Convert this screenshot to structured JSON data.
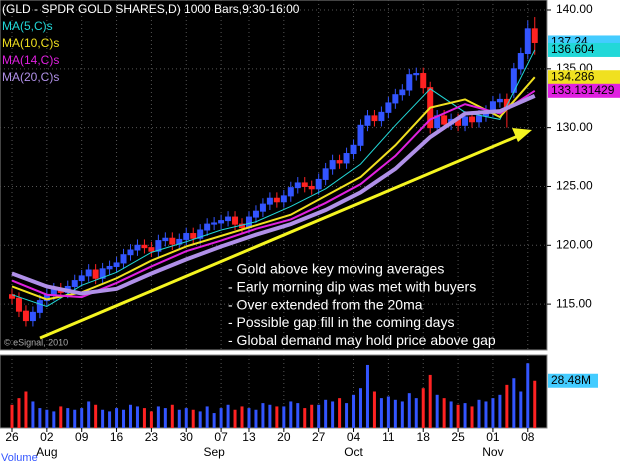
{
  "chart_data": [
    {
      "type": "candlestick",
      "title": "(GLD - SPDR GOLD SHARES,D) 1000 Bars,9:30-16:00",
      "categories": [
        "26",
        null,
        null,
        null,
        null,
        "02",
        null,
        null,
        null,
        null,
        "09",
        null,
        null,
        null,
        null,
        "16",
        null,
        null,
        null,
        null,
        "23",
        null,
        null,
        null,
        null,
        "30",
        null,
        null,
        null,
        null,
        "07",
        null,
        null,
        null,
        "13",
        null,
        null,
        null,
        null,
        "20",
        null,
        null,
        null,
        null,
        "27",
        null,
        null,
        null,
        null,
        "04",
        null,
        null,
        null,
        null,
        "11",
        null,
        null,
        null,
        null,
        "18",
        null,
        null,
        null,
        null,
        "25",
        null,
        null,
        null,
        null,
        "01",
        null,
        null,
        null,
        null,
        "08",
        null
      ],
      "month_categories": [
        null,
        null,
        null,
        null,
        null,
        "Aug",
        null,
        null,
        null,
        null,
        null,
        null,
        null,
        null,
        null,
        null,
        null,
        null,
        null,
        null,
        null,
        null,
        null,
        null,
        null,
        null,
        null,
        null,
        null,
        "Sep",
        null,
        null,
        null,
        null,
        null,
        null,
        null,
        null,
        null,
        null,
        null,
        null,
        null,
        null,
        null,
        null,
        null,
        null,
        null,
        "Oct",
        null,
        null,
        null,
        null,
        null,
        null,
        null,
        null,
        null,
        null,
        null,
        null,
        null,
        null,
        null,
        null,
        null,
        null,
        null,
        "Nov",
        null,
        null,
        null,
        null,
        null,
        null
      ],
      "open": [
        115.8,
        115.5,
        114.4,
        113.6,
        114.3,
        115.3,
        115.8,
        116.3,
        116.0,
        116.5,
        117.0,
        117.4,
        117.9,
        117.2,
        118.0,
        118.2,
        118.5,
        119.2,
        119.6,
        120.0,
        119.8,
        119.5,
        120.4,
        120.6,
        120.1,
        120.5,
        121.0,
        120.6,
        121.3,
        121.8,
        121.9,
        122.1,
        122.4,
        121.8,
        121.5,
        122.4,
        122.9,
        123.5,
        124.0,
        123.7,
        124.2,
        124.9,
        125.3,
        125.0,
        124.8,
        125.6,
        126.5,
        127.2,
        127.0,
        127.8,
        128.5,
        130.2,
        131.0,
        130.6,
        131.3,
        132.1,
        132.8,
        133.2,
        134.5,
        134.6,
        133.4,
        130.0,
        131.0,
        130.3,
        130.7,
        130.2,
        130.9,
        130.5,
        131.0,
        131.4,
        132.2,
        132.4,
        133.0,
        135.0,
        136.3,
        138.4
      ],
      "high": [
        116.3,
        116.0,
        114.9,
        114.8,
        115.8,
        116.3,
        116.8,
        116.8,
        117.0,
        117.5,
        117.9,
        118.4,
        118.4,
        118.5,
        118.7,
        119.0,
        119.7,
        120.1,
        120.5,
        120.5,
        120.3,
        120.9,
        121.1,
        121.1,
        121.0,
        121.5,
        121.5,
        121.8,
        122.3,
        122.4,
        122.6,
        122.9,
        122.9,
        122.3,
        122.9,
        123.4,
        124.0,
        124.5,
        124.5,
        124.7,
        125.4,
        125.8,
        125.8,
        125.5,
        126.1,
        127.0,
        127.7,
        127.7,
        128.3,
        129.0,
        130.7,
        131.5,
        131.5,
        131.8,
        132.6,
        133.3,
        133.7,
        135.0,
        135.1,
        135.1,
        133.9,
        131.5,
        131.5,
        131.2,
        131.2,
        131.4,
        131.4,
        131.5,
        131.9,
        132.7,
        132.9,
        132.9,
        135.5,
        136.8,
        139.1,
        139.4
      ],
      "low": [
        115.0,
        113.9,
        113.1,
        113.1,
        113.8,
        114.8,
        115.3,
        115.5,
        115.5,
        116.0,
        116.5,
        116.9,
        116.7,
        116.7,
        117.5,
        117.7,
        118.0,
        118.7,
        119.1,
        119.3,
        119.0,
        119.0,
        119.9,
        119.6,
        119.6,
        120.0,
        120.1,
        120.1,
        120.8,
        121.3,
        121.4,
        121.6,
        121.3,
        121.0,
        121.0,
        121.9,
        122.4,
        123.0,
        123.2,
        123.2,
        123.7,
        124.4,
        124.5,
        124.3,
        124.3,
        125.1,
        126.0,
        126.5,
        126.5,
        127.3,
        128.0,
        129.7,
        130.1,
        130.1,
        130.8,
        131.6,
        132.3,
        132.7,
        134.0,
        132.9,
        129.5,
        129.5,
        129.8,
        129.8,
        129.7,
        129.7,
        130.0,
        130.0,
        130.5,
        130.9,
        131.7,
        130.0,
        132.5,
        134.5,
        135.8,
        136.2
      ],
      "close": [
        115.5,
        114.4,
        113.6,
        114.3,
        115.3,
        115.8,
        116.3,
        116.0,
        116.5,
        117.0,
        117.4,
        117.9,
        117.2,
        118.0,
        118.2,
        118.5,
        119.2,
        119.6,
        120.0,
        119.8,
        119.5,
        120.4,
        120.6,
        120.1,
        120.5,
        121.0,
        120.6,
        121.3,
        121.8,
        121.9,
        122.1,
        122.4,
        121.8,
        121.5,
        122.4,
        122.9,
        123.5,
        124.0,
        123.7,
        124.2,
        124.9,
        125.3,
        125.0,
        124.8,
        125.6,
        126.5,
        127.2,
        127.0,
        127.8,
        128.5,
        130.2,
        131.0,
        130.6,
        131.3,
        132.1,
        132.8,
        133.2,
        134.5,
        134.6,
        133.4,
        130.0,
        131.0,
        130.3,
        130.7,
        130.2,
        130.9,
        130.5,
        131.0,
        131.4,
        132.2,
        132.4,
        131.6,
        135.0,
        136.3,
        138.4,
        137.24
      ],
      "up_color": "#3355ff",
      "down_color": "#ff2222",
      "last_color": "#44ccff",
      "series": [
        {
          "name": "MA(5,C)s",
          "color": "#22d8d8",
          "x": [
            0,
            5,
            10,
            15,
            20,
            25,
            30,
            35,
            40,
            45,
            50,
            55,
            60,
            65,
            70,
            75
          ],
          "values": [
            115.8,
            114.8,
            116.6,
            117.7,
            119.4,
            120.3,
            121.3,
            122.0,
            123.3,
            124.8,
            126.9,
            130.2,
            133.3,
            131.3,
            130.7,
            136.604
          ]
        },
        {
          "name": "MA(10,C)s",
          "color": "#f0e020",
          "x": [
            0,
            5,
            10,
            15,
            20,
            25,
            30,
            35,
            40,
            45,
            50,
            55,
            60,
            65,
            70,
            75
          ],
          "values": [
            116.5,
            115.4,
            116.0,
            117.2,
            118.7,
            119.9,
            120.8,
            121.7,
            122.6,
            124.2,
            125.8,
            128.5,
            131.7,
            132.4,
            130.9,
            134.286
          ]
        },
        {
          "name": "MA(14,C)s",
          "color": "#e020e0",
          "x": [
            0,
            5,
            10,
            15,
            20,
            25,
            30,
            35,
            40,
            45,
            50,
            55,
            60,
            65,
            70,
            75
          ],
          "values": [
            117.0,
            115.8,
            115.6,
            116.8,
            118.2,
            119.5,
            120.4,
            121.4,
            122.2,
            123.6,
            125.2,
            127.6,
            130.7,
            132.0,
            131.2,
            133.131429
          ]
        },
        {
          "name": "MA(20,C)s",
          "color": "#b090e8",
          "x": [
            0,
            5,
            10,
            15,
            20,
            25,
            30,
            35,
            40,
            45,
            50,
            55,
            60,
            65,
            70,
            75
          ],
          "values": [
            117.6,
            116.5,
            115.9,
            116.3,
            117.6,
            118.8,
            119.9,
            120.9,
            121.8,
            123.0,
            124.5,
            126.5,
            129.2,
            131.2,
            131.4,
            132.7
          ]
        }
      ],
      "ylim": [
        111.1,
        140.85
      ],
      "yticks": [
        {
          "value": 115,
          "label": "115.00"
        },
        {
          "value": 120,
          "label": "120.00"
        },
        {
          "value": 125,
          "label": "125.00"
        },
        {
          "value": 130,
          "label": "130.00"
        },
        {
          "value": 135,
          "label": "135.00"
        },
        {
          "value": 140,
          "label": "140.00"
        }
      ],
      "grid": true,
      "watermark": "© eSignal, 2010",
      "annotations": [
        "- Gold above key moving averages",
        "- Early morning dip was met with buyers",
        "- Over extended from the 20ma",
        "- Possible gap fill in the coming days",
        "- Global demand may hold price above gap"
      ]
    },
    {
      "type": "bar",
      "title": "Volume",
      "values": [
        14,
        18,
        22,
        16,
        12,
        11,
        10,
        13,
        12,
        11,
        12,
        16,
        14,
        11,
        10,
        12,
        11,
        14,
        13,
        12,
        10,
        13,
        12,
        14,
        11,
        12,
        11,
        10,
        13,
        9,
        12,
        14,
        11,
        13,
        12,
        11,
        15,
        14,
        13,
        13,
        16,
        15,
        12,
        14,
        14,
        17,
        16,
        18,
        15,
        20,
        24,
        38,
        22,
        18,
        19,
        17,
        16,
        21,
        18,
        24,
        32,
        20,
        18,
        16,
        14,
        15,
        13,
        17,
        16,
        18,
        20,
        26,
        30,
        22,
        39,
        28.48
      ],
      "ylim": [
        0,
        44
      ],
      "yticks": [
        {
          "value": 28.48,
          "label": "28.48M"
        }
      ]
    }
  ]
}
